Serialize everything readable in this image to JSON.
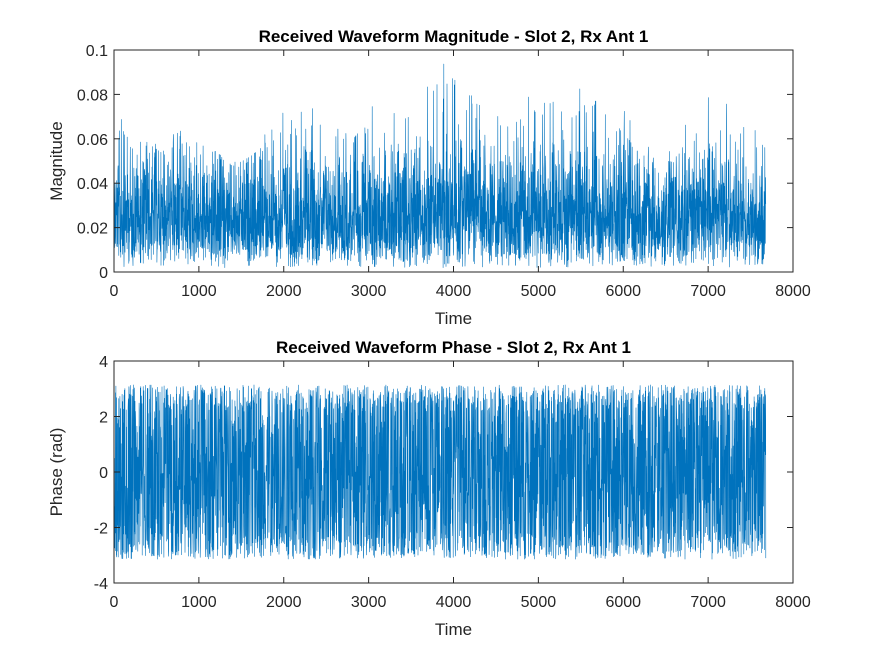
{
  "colors": {
    "series": "#0072BD",
    "axes": "#262626",
    "background": "#ffffff"
  },
  "chart_data": [
    {
      "type": "line",
      "title": "Received Waveform Magnitude - Slot 2, Rx Ant 1",
      "xlabel": "Time",
      "ylabel": "Magnitude",
      "xlim": [
        0,
        8000
      ],
      "ylim": [
        0,
        0.1
      ],
      "xticks": [
        0,
        1000,
        2000,
        3000,
        4000,
        5000,
        6000,
        7000,
        8000
      ],
      "yticks": [
        0,
        0.02,
        0.04,
        0.06,
        0.08,
        0.1
      ],
      "xtick_labels": [
        "0",
        "1000",
        "2000",
        "3000",
        "4000",
        "5000",
        "6000",
        "7000",
        "8000"
      ],
      "ytick_labels": [
        "0",
        "0.02",
        "0.04",
        "0.06",
        "0.08",
        "0.1"
      ],
      "grid": false,
      "legend": "none",
      "series": [
        {
          "color": "#0072BD",
          "sample_count": 7680,
          "x": [
            0,
            200,
            400,
            600,
            800,
            1000,
            1200,
            1400,
            1600,
            1800,
            2000,
            2200,
            2400,
            2600,
            2800,
            3000,
            3200,
            3400,
            3600,
            3800,
            4000,
            4200,
            4400,
            4600,
            4800,
            5000,
            5200,
            5400,
            5600,
            5800,
            6000,
            6200,
            6400,
            6600,
            6800,
            7000,
            7200,
            7400,
            7680
          ],
          "y_low": [
            0.003,
            0.002,
            0.003,
            0.003,
            0.002,
            0.003,
            0.002,
            0.002,
            0.003,
            0.003,
            0.002,
            0.003,
            0.003,
            0.002,
            0.003,
            0.002,
            0.003,
            0.002,
            0.003,
            0.002,
            0.002,
            0.003,
            0.002,
            0.003,
            0.003,
            0.002,
            0.003,
            0.002,
            0.003,
            0.002,
            0.003,
            0.003,
            0.002,
            0.003,
            0.002,
            0.003,
            0.002,
            0.003,
            0.003
          ],
          "y_high": [
            0.077,
            0.07,
            0.068,
            0.062,
            0.076,
            0.062,
            0.064,
            0.056,
            0.061,
            0.068,
            0.078,
            0.075,
            0.079,
            0.072,
            0.069,
            0.082,
            0.073,
            0.08,
            0.086,
            0.098,
            0.094,
            0.085,
            0.083,
            0.076,
            0.081,
            0.087,
            0.076,
            0.082,
            0.09,
            0.083,
            0.074,
            0.062,
            0.06,
            0.058,
            0.074,
            0.082,
            0.079,
            0.066,
            0.066
          ],
          "y_mean": [
            0.026,
            0.025,
            0.024,
            0.024,
            0.025,
            0.023,
            0.023,
            0.022,
            0.023,
            0.024,
            0.025,
            0.025,
            0.026,
            0.025,
            0.025,
            0.026,
            0.025,
            0.026,
            0.027,
            0.027,
            0.027,
            0.026,
            0.026,
            0.025,
            0.026,
            0.026,
            0.025,
            0.026,
            0.026,
            0.026,
            0.025,
            0.024,
            0.023,
            0.023,
            0.024,
            0.025,
            0.025,
            0.024,
            0.024
          ]
        }
      ]
    },
    {
      "type": "line",
      "title": "Received Waveform Phase - Slot 2, Rx Ant 1",
      "xlabel": "Time",
      "ylabel": "Phase (rad)",
      "xlim": [
        0,
        8000
      ],
      "ylim": [
        -4,
        4
      ],
      "xticks": [
        0,
        1000,
        2000,
        3000,
        4000,
        5000,
        6000,
        7000,
        8000
      ],
      "yticks": [
        -4,
        -2,
        0,
        2,
        4
      ],
      "xtick_labels": [
        "0",
        "1000",
        "2000",
        "3000",
        "4000",
        "5000",
        "6000",
        "7000",
        "8000"
      ],
      "ytick_labels": [
        "-4",
        "-2",
        "0",
        "2",
        "4"
      ],
      "grid": false,
      "legend": "none",
      "series": [
        {
          "color": "#0072BD",
          "sample_count": 7680,
          "x": [
            0,
            7680
          ],
          "y_low": [
            -3.14,
            -3.14
          ],
          "y_high": [
            3.14,
            3.14
          ],
          "y_dense_band": [
            -2.0,
            2.0
          ]
        }
      ]
    }
  ]
}
